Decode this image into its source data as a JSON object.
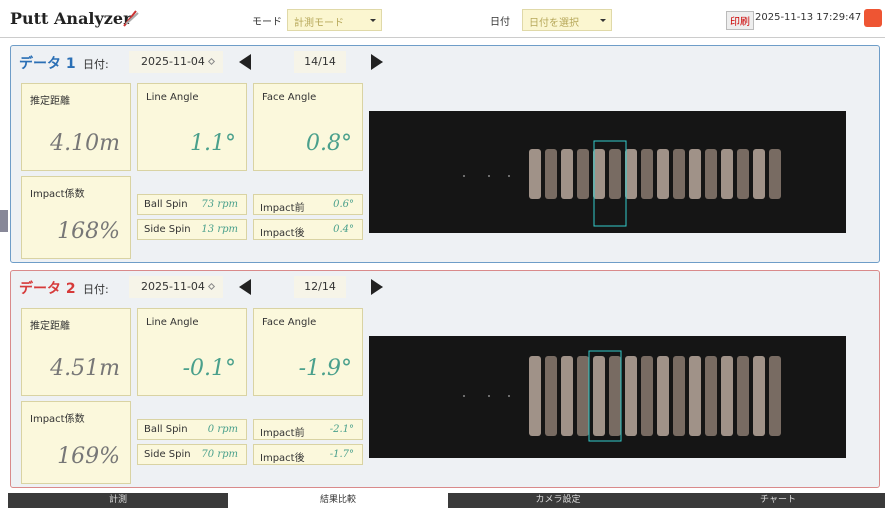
{
  "header": {
    "title": "Putt Analyzer",
    "mode_label": "モード",
    "mode_select": "計測モード",
    "date_label": "日付",
    "date_select": "日付を選択",
    "print_button": "印刷",
    "datetime": "2025-11-13 17:29:47"
  },
  "panels": [
    {
      "title": "データ 1",
      "date_label": "日付:",
      "date": "2025-11-04",
      "counter": "14/14",
      "metrics": [
        {
          "label": "推定距離",
          "value": "4.10m"
        },
        {
          "label": "Line Angle",
          "value": "1.1°"
        },
        {
          "label": "Face Angle",
          "value": "0.8°"
        },
        {
          "label": "Impact係数",
          "value": "168%"
        },
        {
          "label": "Ball Spin",
          "value": "73 rpm"
        },
        {
          "label": "Side Spin",
          "value": "13 rpm"
        },
        {
          "label": "Impact前",
          "value": "0.6°"
        },
        {
          "label": "Impact後",
          "value": "0.4°"
        }
      ]
    },
    {
      "title": "データ 2",
      "date_label": "日付:",
      "date": "2025-11-04",
      "counter": "12/14",
      "metrics": [
        {
          "label": "推定距離",
          "value": "4.51m"
        },
        {
          "label": "Line Angle",
          "value": "-0.1°"
        },
        {
          "label": "Face Angle",
          "value": "-1.9°"
        },
        {
          "label": "Impact係数",
          "value": "169%"
        },
        {
          "label": "Ball Spin",
          "value": "0 rpm"
        },
        {
          "label": "Side Spin",
          "value": "70 rpm"
        },
        {
          "label": "Impact前",
          "value": "-2.1°"
        },
        {
          "label": "Impact後",
          "value": "-1.7°"
        }
      ]
    }
  ],
  "tabs": [
    "計測",
    "結果比較",
    "カメラ設定",
    "チャート"
  ]
}
